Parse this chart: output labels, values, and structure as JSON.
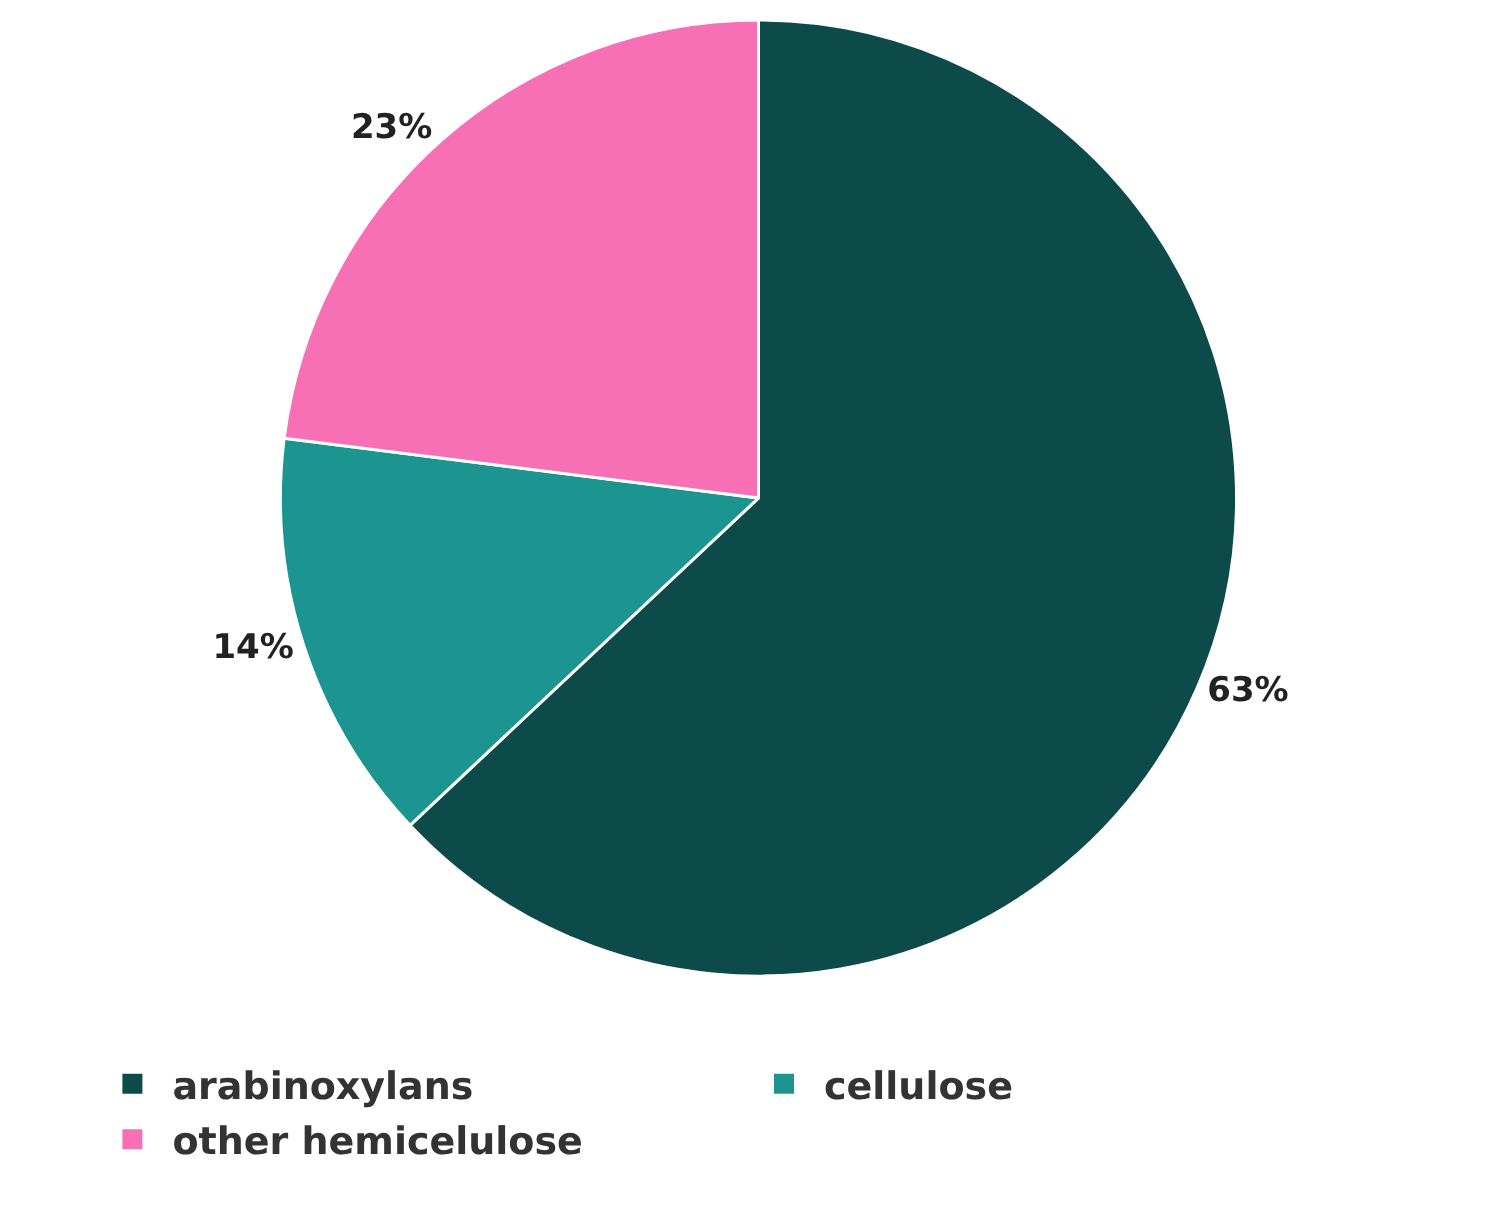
{
  "chart_data": {
    "type": "pie",
    "categories": [
      "arabinoxylans",
      "cellulose",
      "other hemicelulose"
    ],
    "values": [
      63,
      14,
      23
    ],
    "colors": [
      "#0d4a4a",
      "#1c9490",
      "#f76fb4"
    ],
    "value_labels": [
      "63%",
      "14%",
      "23%"
    ],
    "legend": "bottom left"
  }
}
